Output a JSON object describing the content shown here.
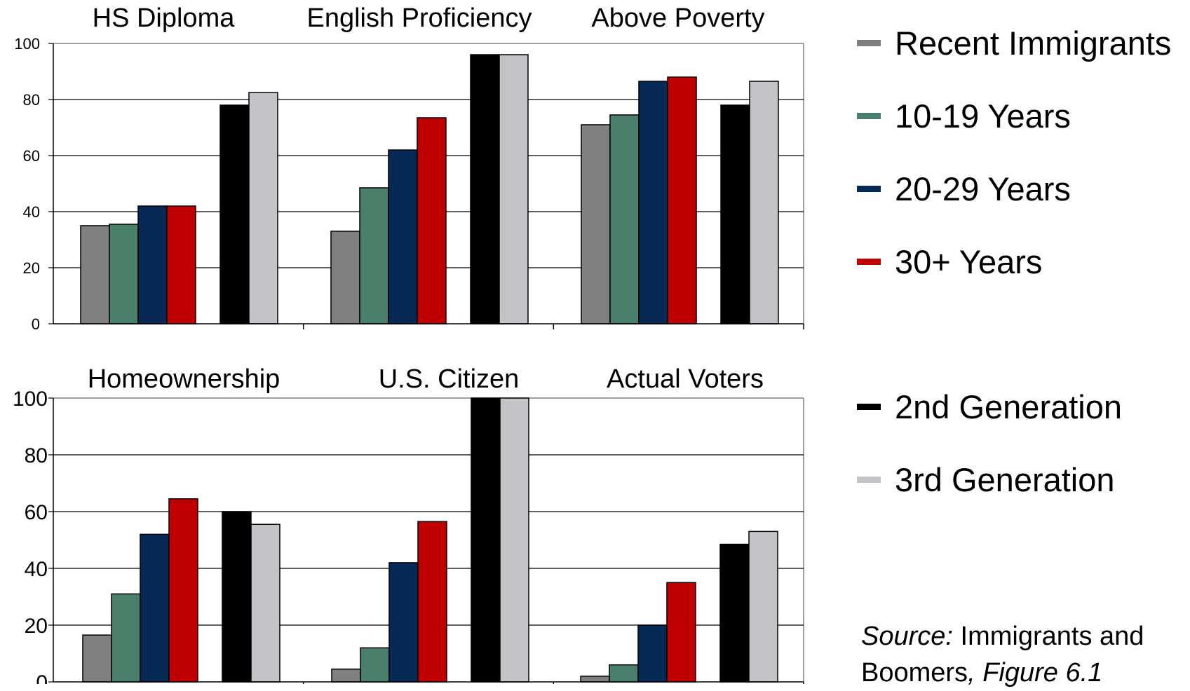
{
  "legend": [
    {
      "name": "Recent Immigrants",
      "color": "#808080"
    },
    {
      "name": "10-19 Years",
      "color": "#4a7f6b"
    },
    {
      "name": "20-29 Years",
      "color": "#062a55"
    },
    {
      "name": "30+ Years",
      "color": "#c00000"
    },
    {
      "name": "2nd Generation",
      "color": "#000000"
    },
    {
      "name": "3rd Generation",
      "color": "#c4c4c8"
    }
  ],
  "source": {
    "label": "Source:",
    "text_a": "Immigrants and",
    "text_b": "Boomers",
    "comma": ",",
    "figure": "Figure 6.1"
  },
  "chart_data": [
    {
      "type": "bar",
      "panel": "top",
      "ylim": [
        0,
        100
      ],
      "yticks": [
        "0",
        "20",
        "40",
        "60",
        "80",
        "100"
      ],
      "grid": true,
      "legend_position": "right",
      "categories": [
        "HS Diploma",
        "English Proficiency",
        "Above Poverty"
      ],
      "series": [
        {
          "name": "Recent Immigrants",
          "values": [
            35,
            33,
            71
          ]
        },
        {
          "name": "10-19 Years",
          "values": [
            35.5,
            48.5,
            74.5
          ]
        },
        {
          "name": "20-29 Years",
          "values": [
            42,
            62,
            86.5
          ]
        },
        {
          "name": "30+ Years",
          "values": [
            42,
            73.5,
            88
          ]
        },
        {
          "name": "2nd Generation",
          "values": [
            78,
            96,
            78
          ]
        },
        {
          "name": "3rd Generation",
          "values": [
            82.5,
            96,
            86.5
          ]
        }
      ]
    },
    {
      "type": "bar",
      "panel": "bottom",
      "ylim": [
        0,
        100
      ],
      "yticks": [
        "0",
        "20",
        "40",
        "60",
        "80",
        "100"
      ],
      "grid": true,
      "legend_position": "right",
      "categories": [
        "Homeownership",
        "U.S. Citizen",
        "Actual Voters"
      ],
      "series": [
        {
          "name": "Recent Immigrants",
          "values": [
            16.5,
            4.5,
            2
          ]
        },
        {
          "name": "10-19 Years",
          "values": [
            31,
            12,
            6
          ]
        },
        {
          "name": "20-29 Years",
          "values": [
            52,
            42,
            20
          ]
        },
        {
          "name": "30+ Years",
          "values": [
            64.5,
            56.5,
            35
          ]
        },
        {
          "name": "2nd Generation",
          "values": [
            60,
            100,
            48.5
          ]
        },
        {
          "name": "3rd Generation",
          "values": [
            55.5,
            100,
            53
          ]
        }
      ]
    }
  ]
}
